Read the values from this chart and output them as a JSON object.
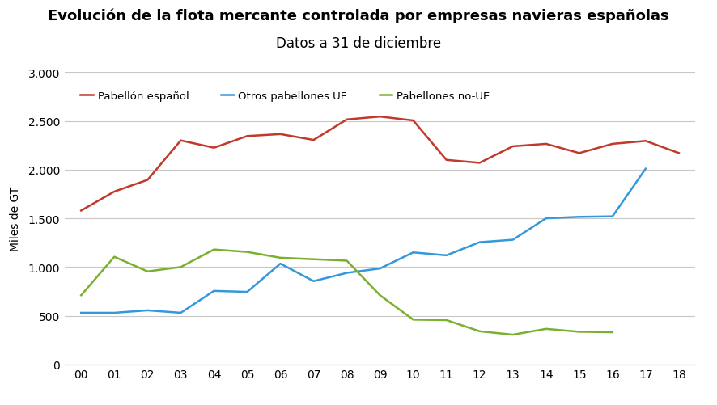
{
  "title_line1": "Evolución de la flota mercante controlada por empresas navieras españolas",
  "title_line2": "Datos a 31 de diciembre",
  "ylabel": "Miles de GT",
  "x_labels": [
    "00",
    "01",
    "02",
    "03",
    "04",
    "05",
    "06",
    "07",
    "08",
    "09",
    "10",
    "11",
    "12",
    "13",
    "14",
    "15",
    "16",
    "17",
    "18"
  ],
  "red_x": [
    0,
    1,
    2,
    3,
    4,
    5,
    6,
    7,
    8,
    9,
    10,
    11,
    12,
    13,
    14,
    15,
    16,
    17,
    18
  ],
  "red_y": [
    1580,
    1775,
    1895,
    2300,
    2225,
    2345,
    2365,
    2305,
    2515,
    2545,
    2505,
    2100,
    2070,
    2240,
    2265,
    2170,
    2265,
    2295,
    2170
  ],
  "blue_x": [
    0,
    1,
    2,
    3,
    4,
    5,
    6,
    7,
    8,
    9,
    10,
    11,
    12,
    13,
    14,
    15,
    16,
    17
  ],
  "blue_y": [
    530,
    530,
    555,
    530,
    755,
    745,
    1035,
    855,
    940,
    985,
    1150,
    1120,
    1255,
    1280,
    1500,
    1515,
    1520,
    2010
  ],
  "green_x": [
    0,
    1,
    2,
    3,
    4,
    5,
    6,
    7,
    8,
    9,
    10,
    11,
    12,
    13,
    14,
    15,
    16
  ],
  "green_y": [
    710,
    1105,
    955,
    1000,
    1180,
    1155,
    1095,
    1080,
    1065,
    710,
    460,
    455,
    340,
    305,
    365,
    335,
    330
  ],
  "ylim": [
    0,
    3000
  ],
  "yticks": [
    0,
    500,
    1000,
    1500,
    2000,
    2500,
    3000
  ],
  "ytick_labels": [
    "0",
    "500",
    "1.000",
    "1.500",
    "2.000",
    "2.500",
    "3.000"
  ],
  "background_color": "#ffffff",
  "grid_color": "#c8c8c8",
  "line_width": 1.8,
  "title_fontsize": 13,
  "subtitle_fontsize": 12,
  "legend_fontsize": 9.5,
  "axis_fontsize": 10,
  "red_label": "Pabellón español",
  "blue_label": "Otros pabellones UE",
  "green_label": "Pabellones no-UE",
  "red_color": "#c0392b",
  "blue_color": "#3498db",
  "green_color": "#7ab030"
}
